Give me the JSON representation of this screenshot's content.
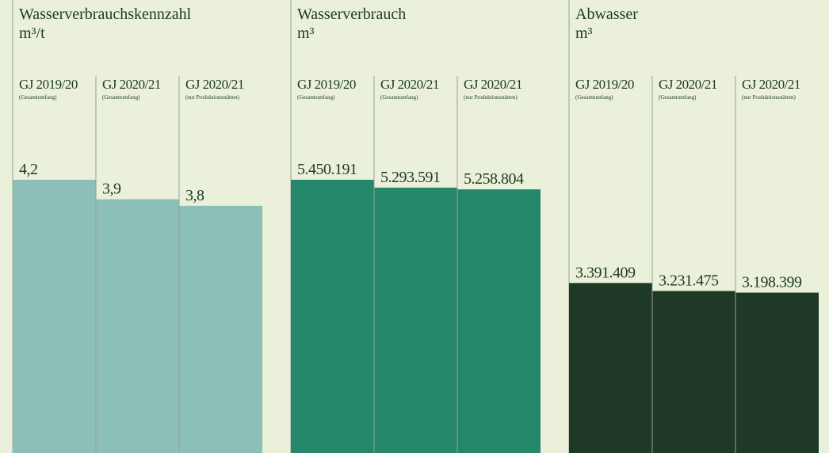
{
  "chart_data": [
    {
      "type": "bar",
      "title": "Wasserverbrauchskennzahl",
      "subtitle": "m³/t",
      "categories": [
        "GJ 2019/20",
        "GJ 2020/21",
        "GJ 2020/21"
      ],
      "category_notes": [
        "(Gesamtumfang)",
        "(Gesamtumfang)",
        "(nur Produktionsstätten)"
      ],
      "values": [
        4.2,
        3.9,
        3.8
      ],
      "value_labels": [
        "4,2",
        "3,9",
        "3,8"
      ],
      "color": "#8bbfb8",
      "ylim": [
        0,
        4.2
      ]
    },
    {
      "type": "bar",
      "title": "Wasserverbrauch",
      "subtitle": "m³",
      "categories": [
        "GJ 2019/20",
        "GJ 2020/21",
        "GJ 2020/21"
      ],
      "category_notes": [
        "(Gesamtumfang)",
        "(Gesamtumfang)",
        "(nur Produktionsstätten)"
      ],
      "values": [
        5450191,
        5293591,
        5258804
      ],
      "value_labels": [
        "5.450.191",
        "5.293.591",
        "5.258.804"
      ],
      "color": "#24876a",
      "ylim": [
        0,
        5450191
      ]
    },
    {
      "type": "bar",
      "title": "Abwasser",
      "subtitle": "m³",
      "categories": [
        "GJ 2019/20",
        "GJ 2020/21",
        "GJ 2020/21"
      ],
      "category_notes": [
        "(Gesamtumfang)",
        "(Gesamtumfang)",
        "(nur Produktionsstätten)"
      ],
      "values": [
        3391409,
        3231475,
        3198399
      ],
      "value_labels": [
        "3.391.409",
        "3.231.475",
        "3.198.399"
      ],
      "color": "#1e3a27",
      "ylim": [
        0,
        5450191
      ]
    }
  ]
}
